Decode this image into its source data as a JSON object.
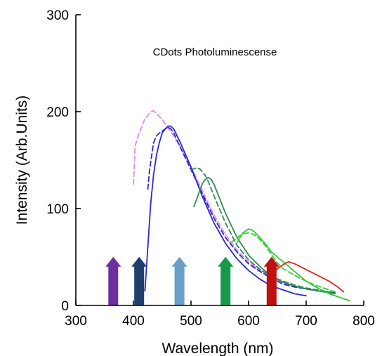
{
  "chart_data": {
    "type": "line",
    "title": "",
    "annotation": "CDots Photoluminescense",
    "xlabel": "Wavelength (nm)",
    "ylabel": "Intensity (Arb.Units)",
    "xlim": [
      300,
      800
    ],
    "ylim": [
      0,
      300
    ],
    "xticks": [
      300,
      400,
      500,
      600,
      700,
      800
    ],
    "yticks": [
      0,
      100,
      200,
      300
    ],
    "grid": false,
    "legend": "none",
    "series": [
      {
        "color": "#ee82ee",
        "dash": true,
        "x": [
          400,
          403,
          410,
          415,
          420,
          425,
          430,
          435,
          440,
          450,
          460,
          470,
          480,
          500,
          520,
          540,
          560,
          580,
          600,
          620,
          640,
          660,
          680,
          700,
          720,
          740,
          750
        ],
        "y": [
          125,
          165,
          178,
          185,
          193,
          196,
          200,
          201,
          198,
          192,
          183,
          175,
          165,
          143,
          118,
          93,
          73,
          57,
          45,
          36,
          28,
          23,
          20,
          17,
          15,
          14,
          13
        ]
      },
      {
        "color": "#2929d0",
        "dash": true,
        "x": [
          425,
          428,
          435,
          440,
          445,
          450,
          455,
          460,
          465,
          470,
          480,
          500,
          520,
          540,
          560,
          580,
          600,
          620,
          640,
          660,
          680,
          700,
          720,
          740,
          750
        ],
        "y": [
          120,
          140,
          168,
          175,
          178,
          180,
          182,
          184,
          182,
          178,
          165,
          140,
          115,
          90,
          70,
          55,
          43,
          35,
          28,
          22,
          19,
          17,
          15,
          14,
          13
        ]
      },
      {
        "color": "#2929d0",
        "dash": false,
        "x": [
          420,
          425,
          430,
          435,
          440,
          445,
          450,
          455,
          460,
          465,
          470,
          480,
          500,
          520,
          540,
          560,
          580,
          600,
          620,
          640,
          660,
          680,
          700
        ],
        "y": [
          15,
          60,
          105,
          135,
          155,
          168,
          178,
          182,
          185,
          185,
          182,
          170,
          143,
          112,
          85,
          64,
          48,
          36,
          27,
          20,
          16,
          12,
          10
        ]
      },
      {
        "color": "#2e8b57",
        "dash": false,
        "x": [
          505,
          510,
          515,
          520,
          525,
          530,
          535,
          540,
          550,
          560,
          580,
          600,
          620,
          640,
          660,
          680,
          700,
          720,
          740,
          750
        ],
        "y": [
          102,
          110,
          118,
          126,
          130,
          132,
          130,
          125,
          110,
          95,
          70,
          52,
          40,
          30,
          24,
          20,
          17,
          15,
          13,
          12
        ]
      },
      {
        "color": "#2e8b57",
        "dash": true,
        "x": [
          500,
          505,
          510,
          515,
          520,
          525,
          530,
          540,
          560,
          580,
          600,
          620,
          640,
          660,
          680,
          700,
          720,
          740,
          750
        ],
        "y": [
          140,
          141,
          142,
          141,
          138,
          134,
          128,
          113,
          85,
          62,
          47,
          37,
          30,
          25,
          21,
          18,
          16,
          14,
          13
        ]
      },
      {
        "color": "#32cd32",
        "dash": false,
        "x": [
          580,
          585,
          590,
          595,
          600,
          605,
          610,
          620,
          630,
          640,
          660,
          680,
          700,
          720,
          740,
          760,
          775
        ],
        "y": [
          65,
          70,
          75,
          77,
          79,
          78,
          76,
          70,
          63,
          55,
          45,
          35,
          25,
          18,
          12,
          8,
          5
        ]
      },
      {
        "color": "#32cd32",
        "dash": true,
        "x": [
          570,
          580,
          590,
          600,
          610,
          620,
          630,
          640,
          650,
          660,
          680,
          700,
          720,
          740,
          750
        ],
        "y": [
          65,
          70,
          74,
          75,
          73,
          68,
          61,
          52,
          44,
          38,
          31,
          25,
          20,
          16,
          14
        ]
      },
      {
        "color": "#e02020",
        "dash": false,
        "x": [
          645,
          650,
          655,
          660,
          665,
          670,
          675,
          680,
          690,
          700,
          720,
          740,
          755,
          765
        ],
        "y": [
          35,
          38,
          40,
          42,
          44,
          45,
          44,
          43,
          40,
          37,
          31,
          25,
          19,
          14
        ]
      }
    ],
    "arrows": [
      {
        "x": 365,
        "color": "#6b2fa0"
      },
      {
        "x": 410,
        "color": "#1f3e6b"
      },
      {
        "x": 480,
        "color": "#6aa0c8"
      },
      {
        "x": 560,
        "color": "#159a4c"
      },
      {
        "x": 640,
        "color": "#c01010"
      }
    ]
  }
}
